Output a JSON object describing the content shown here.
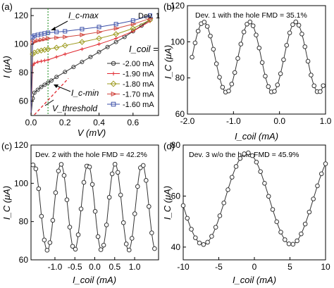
{
  "chart_data": [
    {
      "panel": "(a)",
      "type": "line",
      "corner_text": "Dev. 1",
      "xlabel": "V (mV)",
      "ylabel": "I (μA)",
      "xlim": [
        0.0,
        0.75
      ],
      "ylim": [
        50,
        125
      ],
      "xticks": [
        0.0,
        0.2,
        0.4,
        0.6
      ],
      "xtick_labels": [
        "0.0",
        "0.2",
        "0.4",
        "0.6"
      ],
      "yticks": [
        60,
        80,
        100,
        120
      ],
      "ytick_labels": [
        "60",
        "80",
        "100",
        "120"
      ],
      "legend_title": "I_coil =",
      "legend_position": "right",
      "annotations": [
        "I_c-max",
        "I_c-min",
        "V_threshold"
      ],
      "guide_line_x": 0.1,
      "series": [
        {
          "name": "-2.00 mA",
          "color": "#333333",
          "marker": "circle",
          "x": [
            0.0,
            0.01,
            0.02,
            0.04,
            0.06,
            0.08,
            0.1,
            0.12,
            0.15,
            0.2,
            0.25,
            0.3,
            0.35,
            0.4,
            0.45,
            0.5,
            0.55,
            0.6,
            0.65,
            0.7
          ],
          "y": [
            50,
            62,
            66,
            68,
            70,
            71.5,
            73,
            74.5,
            77,
            80.5,
            84,
            87.5,
            91,
            94.5,
            98,
            101.5,
            105,
            109,
            113,
            117
          ]
        },
        {
          "name": "-1.90 mA",
          "color": "#e0252d",
          "marker": "plus",
          "x": [
            0.0,
            0.01,
            0.02,
            0.04,
            0.06,
            0.08,
            0.1,
            0.15,
            0.2,
            0.3,
            0.4,
            0.5,
            0.6,
            0.7
          ],
          "y": [
            50,
            85,
            86.5,
            87.5,
            88,
            88.5,
            89,
            91,
            93,
            96.5,
            100,
            104,
            109,
            116
          ]
        },
        {
          "name": "-1.80 mA",
          "color": "#9c9a1d",
          "marker": "diamond",
          "x": [
            0.0,
            0.01,
            0.02,
            0.04,
            0.06,
            0.08,
            0.1,
            0.15,
            0.2,
            0.3,
            0.4,
            0.5,
            0.6,
            0.7
          ],
          "y": [
            50,
            93,
            94,
            95,
            95.5,
            96,
            96.5,
            97.5,
            99,
            101.5,
            104,
            107,
            111,
            117
          ]
        },
        {
          "name": "-1.70 mA",
          "color": "#d0453d",
          "marker": "triangle-right",
          "x": [
            0.0,
            0.01,
            0.02,
            0.04,
            0.06,
            0.08,
            0.1,
            0.15,
            0.2,
            0.3,
            0.4,
            0.5,
            0.6,
            0.7
          ],
          "y": [
            50,
            101,
            102,
            102.5,
            103,
            103.5,
            104,
            104.5,
            105,
            106.5,
            108.5,
            111,
            114,
            118
          ]
        },
        {
          "name": "-1.60 mA",
          "color": "#3b4fa8",
          "marker": "square",
          "x": [
            0.0,
            0.01,
            0.02,
            0.04,
            0.06,
            0.08,
            0.1,
            0.15,
            0.2,
            0.3,
            0.4,
            0.5,
            0.6,
            0.7
          ],
          "y": [
            50,
            105,
            106,
            106.5,
            107,
            107.5,
            108,
            108.5,
            109,
            110.5,
            112,
            114,
            116.5,
            120
          ]
        }
      ]
    },
    {
      "panel": "(b)",
      "type": "scatter",
      "title": "Dev. 1 with the hole FMD = 35.1%",
      "xlabel": "I_coil (mA)",
      "ylabel": "I_C (μA)",
      "xlim": [
        -2.0,
        1.0
      ],
      "ylim": [
        60,
        120
      ],
      "xticks": [
        -2.0,
        -1.0,
        0.0,
        1.0
      ],
      "xtick_labels": [
        "-2.0",
        "-1.0",
        "0.0",
        "1.0"
      ],
      "yticks": [
        60,
        80,
        100,
        120
      ],
      "ytick_labels": [
        "60",
        "80",
        "100",
        "120"
      ],
      "model": {
        "offset": 91.5,
        "amplitude": 19.5,
        "period": 1.0,
        "peak_at": -1.65
      },
      "x_range": [
        -1.9,
        0.95
      ],
      "n_points": 44
    },
    {
      "panel": "(c)",
      "type": "scatter",
      "title": "Dev. 2 with the hole FMD = 42.2%",
      "xlabel": "I_coil (mA)",
      "ylabel": "I_C (μA)",
      "xlim": [
        -1.6,
        1.6
      ],
      "ylim": [
        60,
        120
      ],
      "xticks": [
        -1.0,
        -0.5,
        0.0,
        0.5,
        1.0
      ],
      "xtick_labels": [
        "-1.0",
        "-0.5",
        "0.0",
        "0.5",
        "1.0"
      ],
      "yticks": [
        60,
        80,
        100,
        120
      ],
      "ytick_labels": [
        "60",
        "80",
        "100",
        "120"
      ],
      "model": {
        "offset": 87.5,
        "amplitude": 22.5,
        "period": 0.68,
        "peak_at": -1.53
      },
      "x_range": [
        -1.55,
        1.5
      ],
      "n_points": 44
    },
    {
      "panel": "(d)",
      "type": "scatter",
      "title": "Dev. 3 w/o the hole FMD = 45.9%",
      "xlabel": "I_coil (mA)",
      "ylabel": "I_C (μA)",
      "xlim": [
        -10,
        10
      ],
      "ylim": [
        35,
        80
      ],
      "xticks": [
        -10,
        -5,
        0,
        5,
        10
      ],
      "xtick_labels": [
        "-10",
        "-5",
        "0",
        "5",
        "10"
      ],
      "yticks": [
        40,
        60,
        80
      ],
      "ytick_labels": [
        "40",
        "60",
        "80"
      ],
      "model": {
        "offset": 59,
        "amplitude": 18,
        "period": 12.4,
        "peak_at": -1.0
      },
      "x_range": [
        -10,
        10
      ],
      "n_points": 36
    }
  ]
}
